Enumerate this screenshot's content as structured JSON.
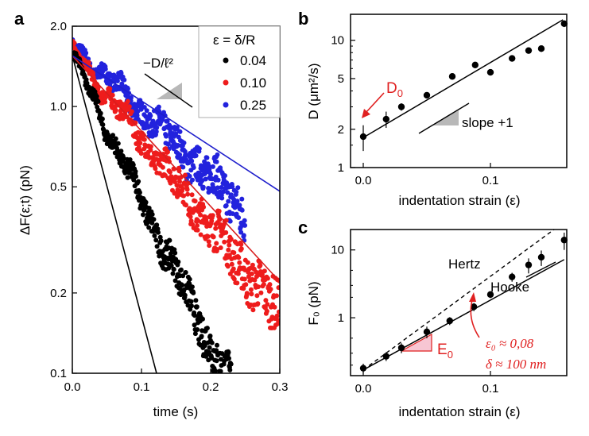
{
  "chart_data": [
    {
      "panel": "a",
      "type": "scatter",
      "yscale": "log",
      "xlabel": "time (s)",
      "ylabel": "ΔF(ε;t) (pN)",
      "xlim": [
        0,
        0.3
      ],
      "ylim": [
        0.1,
        2.0
      ],
      "xticks": [
        "0.0",
        "0.1",
        "0.2",
        "0.3"
      ],
      "yticks": [
        "0.1",
        "0.2",
        "0.5",
        "1.0",
        "2.0"
      ],
      "slope_label": "−D/ℓ²",
      "legend": {
        "title": "ε = δ/R",
        "position": "top-right"
      },
      "series": [
        {
          "name": "0.04",
          "color": "#000000",
          "rate": 12.5,
          "F0": 1.55,
          "tmax": 0.27
        },
        {
          "name": "0.10",
          "color": "#ee1c1c",
          "rate": 7.6,
          "F0": 1.62,
          "tmax": 0.3
        },
        {
          "name": "0.25",
          "color": "#2222dd",
          "rate": 5.8,
          "F0": 1.72,
          "tmax": 0.25
        }
      ],
      "fit_lines": [
        {
          "color": "#000000",
          "F0": 1.55,
          "rate": 22.5,
          "tmax": 0.135
        },
        {
          "color": "#d81e1e",
          "F0": 1.55,
          "rate": 6.5,
          "tmax": 0.3
        },
        {
          "color": "#1f1fcc",
          "F0": 1.55,
          "rate": 3.9,
          "tmax": 0.3
        }
      ]
    },
    {
      "panel": "b",
      "type": "scatter",
      "yscale": "log",
      "xlabel": "indentation strain (ε)",
      "ylabel": "D (μm²/s)",
      "xlim": [
        -0.01,
        0.16
      ],
      "ylim": [
        1,
        16
      ],
      "xticks": [
        "0.0",
        "0.1"
      ],
      "yticks": [
        "1",
        "2",
        "5",
        "10"
      ],
      "x": [
        0.0,
        0.018,
        0.03,
        0.05,
        0.07,
        0.088,
        0.1,
        0.117,
        0.13,
        0.14,
        0.158
      ],
      "y": [
        1.75,
        2.4,
        3.0,
        3.7,
        5.2,
        6.4,
        5.6,
        7.2,
        8.3,
        8.6,
        13.5
      ],
      "yerr": [
        0.4,
        0.35,
        0.2,
        0.2,
        0.3,
        0.35,
        0.3,
        0.3,
        0.4,
        0.5,
        0.8
      ],
      "fit": {
        "x": [
          0.0,
          0.157
        ],
        "y": [
          1.72,
          14.5
        ]
      },
      "annotations": {
        "d0": "D",
        "d0_sub": "0",
        "slope": "slope +1"
      }
    },
    {
      "panel": "c",
      "type": "scatter",
      "yscale": "log",
      "xlabel": "indentation strain (ε)",
      "ylabel": "F₀ (pN)",
      "xlim": [
        -0.01,
        0.16
      ],
      "ylim": [
        0.14,
        20
      ],
      "xticks": [
        "0.0",
        "0.1"
      ],
      "yticks": [
        "1",
        "10"
      ],
      "x": [
        0.0,
        0.018,
        0.03,
        0.05,
        0.068,
        0.087,
        0.1,
        0.117,
        0.13,
        0.14,
        0.158
      ],
      "y": [
        0.18,
        0.27,
        0.36,
        0.62,
        0.9,
        1.45,
        2.2,
        4.0,
        6.0,
        7.8,
        14.0
      ],
      "yerr": [
        0.03,
        0.04,
        0.06,
        0.12,
        0.12,
        0.2,
        0.25,
        0.6,
        1.5,
        2.0,
        4.0
      ],
      "hooke_fit": {
        "x": [
          0.0,
          0.158
        ],
        "y": [
          0.17,
          7.2
        ]
      },
      "hertz_fit": {
        "x": [
          0.0,
          0.15
        ],
        "y": [
          0.17,
          20
        ]
      },
      "labels": {
        "hertz": "Hertz",
        "hooke": "Hooke",
        "e0": "E",
        "e0_sub": "0"
      },
      "annotation": {
        "eps0": "ε₀ ≈ 0,08",
        "delta": "δ ≈ 100 nm"
      }
    }
  ],
  "panel_labels": {
    "a": "a",
    "b": "b",
    "c": "c"
  }
}
